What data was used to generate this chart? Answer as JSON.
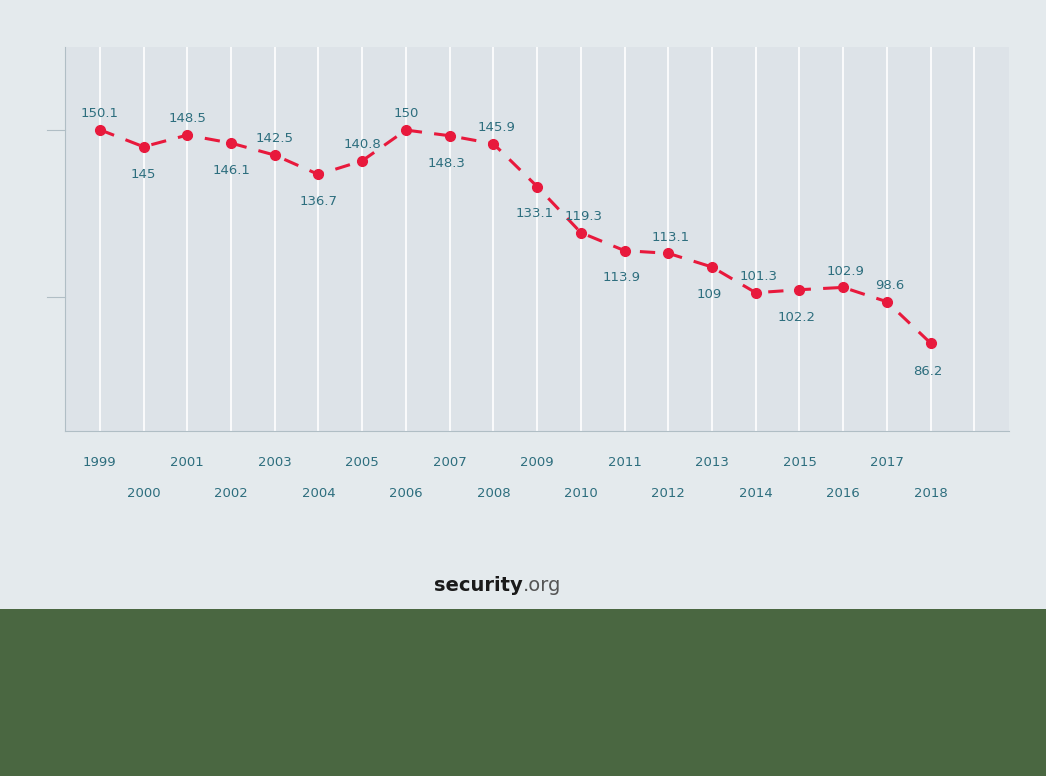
{
  "years": [
    1999,
    2000,
    2001,
    2002,
    2003,
    2004,
    2005,
    2006,
    2007,
    2008,
    2009,
    2010,
    2011,
    2012,
    2013,
    2014,
    2015,
    2016,
    2017,
    2018
  ],
  "values": [
    150.1,
    145.0,
    148.5,
    146.1,
    142.5,
    136.7,
    140.8,
    150.0,
    148.3,
    145.9,
    133.1,
    119.3,
    113.9,
    113.1,
    109.0,
    101.3,
    102.2,
    102.9,
    98.6,
    86.2
  ],
  "line_color": "#e8193c",
  "marker_color": "#e8193c",
  "bg_color": "#e4eaed",
  "plot_bg_color": "#dde3e8",
  "grid_color": "#ffffff",
  "label_color": "#2d6e7e",
  "annotation_color": "#2d6e7e",
  "green_color": "#4a6741",
  "xlim_min": 1998.2,
  "xlim_max": 2019.8,
  "ylim_min": 60,
  "ylim_max": 175,
  "odd_year_labels": [
    1999,
    2001,
    2003,
    2005,
    2007,
    2009,
    2011,
    2013,
    2015,
    2017
  ],
  "even_year_labels": [
    2000,
    2002,
    2004,
    2006,
    2008,
    2010,
    2012,
    2014,
    2016,
    2018
  ],
  "ann_above": [
    1999,
    2001,
    2003,
    2005,
    2006,
    2008,
    2010,
    2012,
    2014,
    2016,
    2017
  ],
  "ann_below": [
    2000,
    2002,
    2004,
    2007,
    2009,
    2011,
    2013,
    2015,
    2018
  ],
  "watermark_bold": "security",
  "watermark_dot_color": "#1a6fad",
  "watermark_normal": ".org"
}
